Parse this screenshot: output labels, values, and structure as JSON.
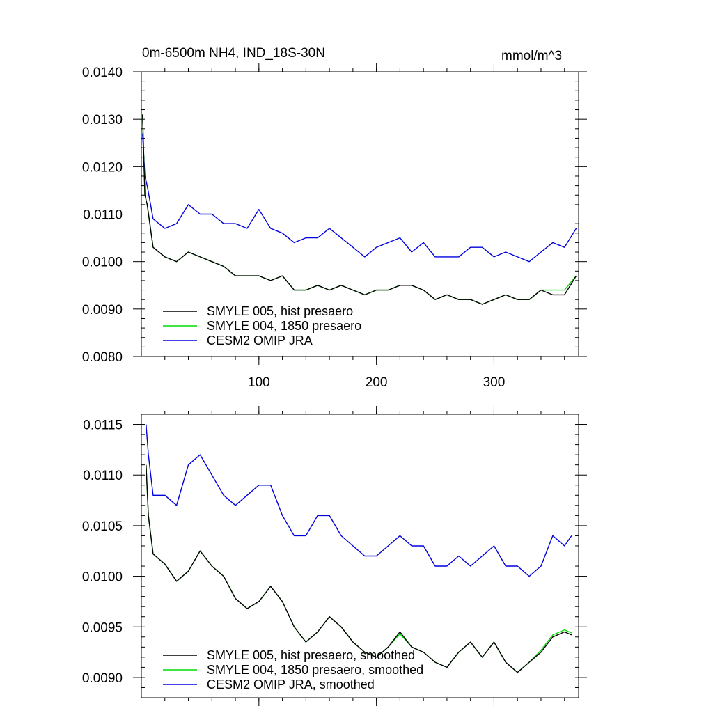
{
  "header": {
    "title": "0m-6500m NH4, IND_18S-30N",
    "units": "mmol/m^3"
  },
  "chart_data": [
    {
      "type": "line",
      "panel": "top",
      "xlim": [
        0,
        372
      ],
      "ylim": [
        0.008,
        0.014
      ],
      "x_ticks": [
        100,
        200,
        300
      ],
      "x_tick_labels": [
        "100",
        "200",
        "300"
      ],
      "y_ticks": [
        0.008,
        0.009,
        0.01,
        0.011,
        0.012,
        0.013,
        0.014
      ],
      "y_tick_labels": [
        "0.0080",
        "0.0090",
        "0.0100",
        "0.0110",
        "0.0120",
        "0.0130",
        "0.0140"
      ],
      "legend_position": "bottom-left",
      "x": [
        1,
        3,
        5,
        10,
        20,
        30,
        40,
        50,
        60,
        70,
        80,
        90,
        100,
        110,
        120,
        130,
        140,
        150,
        160,
        170,
        180,
        190,
        200,
        210,
        220,
        230,
        240,
        250,
        260,
        270,
        280,
        290,
        300,
        310,
        320,
        330,
        340,
        350,
        360,
        370
      ],
      "series": [
        {
          "name": "SMYLE 005, hist presaero",
          "color": "#000000",
          "values": [
            0.0131,
            0.0114,
            0.0112,
            0.0103,
            0.0101,
            0.01,
            0.0102,
            0.0101,
            0.01,
            0.0099,
            0.0097,
            0.0097,
            0.0097,
            0.0096,
            0.0097,
            0.0094,
            0.0094,
            0.0095,
            0.0094,
            0.0095,
            0.0094,
            0.0093,
            0.0094,
            0.0094,
            0.0095,
            0.0095,
            0.0094,
            0.0092,
            0.0093,
            0.0092,
            0.0092,
            0.0091,
            0.0092,
            0.0093,
            0.0092,
            0.0092,
            0.0094,
            0.0093,
            0.0093,
            0.0097
          ]
        },
        {
          "name": "SMYLE 004, 1850 presaero",
          "color": "#00dd00",
          "values": [
            0.0131,
            0.0114,
            0.0112,
            0.0103,
            0.0101,
            0.01,
            0.0102,
            0.0101,
            0.01,
            0.0099,
            0.0097,
            0.0097,
            0.0097,
            0.0096,
            0.0097,
            0.0094,
            0.0094,
            0.0095,
            0.0094,
            0.0095,
            0.0094,
            0.0093,
            0.0094,
            0.0094,
            0.0095,
            0.0095,
            0.0094,
            0.0092,
            0.0093,
            0.0092,
            0.0092,
            0.0091,
            0.0092,
            0.0093,
            0.0092,
            0.0092,
            0.0094,
            0.0094,
            0.0094,
            0.0097
          ]
        },
        {
          "name": "CESM2 OMIP JRA",
          "color": "#0000dd",
          "values": [
            0.0127,
            0.0118,
            0.0116,
            0.0109,
            0.0107,
            0.0108,
            0.0112,
            0.011,
            0.011,
            0.0108,
            0.0108,
            0.0107,
            0.0111,
            0.0107,
            0.0106,
            0.0104,
            0.0105,
            0.0105,
            0.0107,
            0.0105,
            0.0103,
            0.0101,
            0.0103,
            0.0104,
            0.0105,
            0.0102,
            0.0104,
            0.0101,
            0.0101,
            0.0101,
            0.0103,
            0.0103,
            0.0101,
            0.0102,
            0.0101,
            0.01,
            0.0102,
            0.0104,
            0.0103,
            0.0107
          ]
        }
      ]
    },
    {
      "type": "line",
      "panel": "bottom",
      "xlim": [
        0,
        372
      ],
      "ylim": [
        0.0088,
        0.0116
      ],
      "x_ticks": [
        100,
        200,
        300
      ],
      "y_ticks": [
        0.009,
        0.0095,
        0.01,
        0.0105,
        0.011,
        0.0115
      ],
      "y_tick_labels": [
        "0.0090",
        "0.0095",
        "0.0100",
        "0.0105",
        "0.0110",
        "0.0115"
      ],
      "legend_position": "bottom-left",
      "x": [
        4,
        6,
        10,
        20,
        30,
        40,
        50,
        60,
        70,
        80,
        90,
        100,
        110,
        120,
        130,
        140,
        150,
        160,
        170,
        180,
        190,
        200,
        210,
        220,
        230,
        240,
        250,
        260,
        270,
        280,
        290,
        300,
        310,
        320,
        330,
        340,
        350,
        360,
        366
      ],
      "series": [
        {
          "name": "SMYLE 005, hist presaero, smoothed",
          "color": "#000000",
          "values": [
            0.0111,
            0.0106,
            0.01022,
            0.01012,
            0.00995,
            0.01005,
            0.01025,
            0.0101,
            0.01,
            0.00978,
            0.00968,
            0.00975,
            0.0099,
            0.00975,
            0.0095,
            0.00935,
            0.00945,
            0.0096,
            0.0095,
            0.00935,
            0.00925,
            0.0092,
            0.0093,
            0.00945,
            0.0093,
            0.00925,
            0.00915,
            0.0091,
            0.00925,
            0.00935,
            0.0092,
            0.00935,
            0.00915,
            0.00905,
            0.00915,
            0.00925,
            0.0094,
            0.00945,
            0.00942
          ]
        },
        {
          "name": "SMYLE 004, 1850 presaero, smoothed",
          "color": "#00dd00",
          "values": [
            0.0111,
            0.0106,
            0.01022,
            0.01012,
            0.00995,
            0.01005,
            0.01025,
            0.0101,
            0.01,
            0.00978,
            0.00968,
            0.00975,
            0.0099,
            0.00975,
            0.0095,
            0.00935,
            0.00945,
            0.0096,
            0.0095,
            0.00935,
            0.00925,
            0.0092,
            0.0093,
            0.00943,
            0.0093,
            0.00925,
            0.00915,
            0.0091,
            0.00925,
            0.00935,
            0.0092,
            0.00935,
            0.00915,
            0.00905,
            0.00915,
            0.00927,
            0.00942,
            0.00947,
            0.00944
          ]
        },
        {
          "name": "CESM2 OMIP JRA, smoothed",
          "color": "#0000dd",
          "values": [
            0.0115,
            0.0112,
            0.0108,
            0.0108,
            0.0107,
            0.0111,
            0.0112,
            0.011,
            0.0108,
            0.0107,
            0.0108,
            0.0109,
            0.0109,
            0.0106,
            0.0104,
            0.0104,
            0.0106,
            0.0106,
            0.0104,
            0.0103,
            0.0102,
            0.0102,
            0.0103,
            0.0104,
            0.0103,
            0.0103,
            0.0101,
            0.0101,
            0.0102,
            0.0101,
            0.0102,
            0.0103,
            0.0101,
            0.0101,
            0.01,
            0.0101,
            0.0104,
            0.0103,
            0.0104
          ]
        }
      ]
    }
  ]
}
